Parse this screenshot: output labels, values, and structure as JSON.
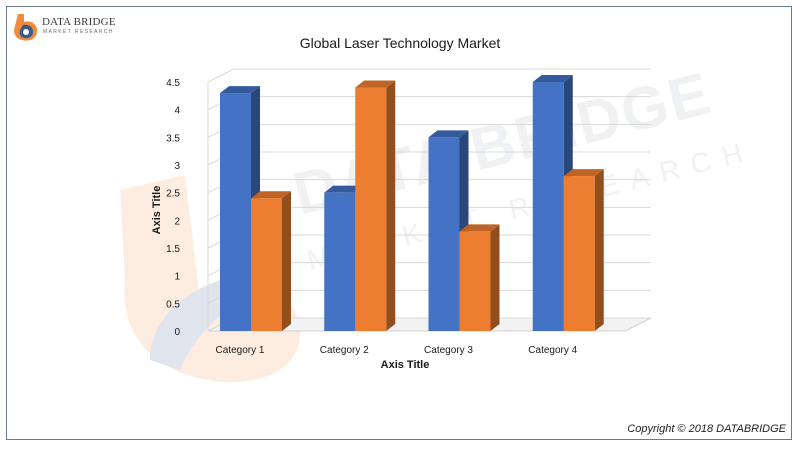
{
  "brand": {
    "name": "DATA BRIDGE",
    "tagline": "MARKET RESEARCH",
    "watermark_name": "DATA BRIDGE",
    "watermark_tagline": "MARKET RESEARCH",
    "logo_colors": [
      "#f08a3c",
      "#3a5a8c"
    ]
  },
  "footer": {
    "copyright": "Copyright © 2018 DATABRIDGE"
  },
  "chart_data": {
    "type": "bar",
    "style": "3d-clustered-column",
    "title": "Global Laser Technology Market",
    "xlabel": "Axis Title",
    "ylabel": "Axis Title",
    "categories": [
      "Category 1",
      "Category 2",
      "Category 3",
      "Category 4"
    ],
    "series": [
      {
        "values": [
          4.3,
          2.5,
          3.5,
          4.5
        ],
        "color": "#4472c4"
      },
      {
        "values": [
          2.4,
          4.4,
          1.8,
          2.8
        ],
        "color": "#ed7d31"
      }
    ],
    "ylim": [
      0,
      4.5
    ],
    "yticks": [
      "0",
      "0.5",
      "1",
      "1.5",
      "2",
      "2.5",
      "3",
      "3.5",
      "4",
      "4.5"
    ],
    "grid": true,
    "legend": "none"
  }
}
